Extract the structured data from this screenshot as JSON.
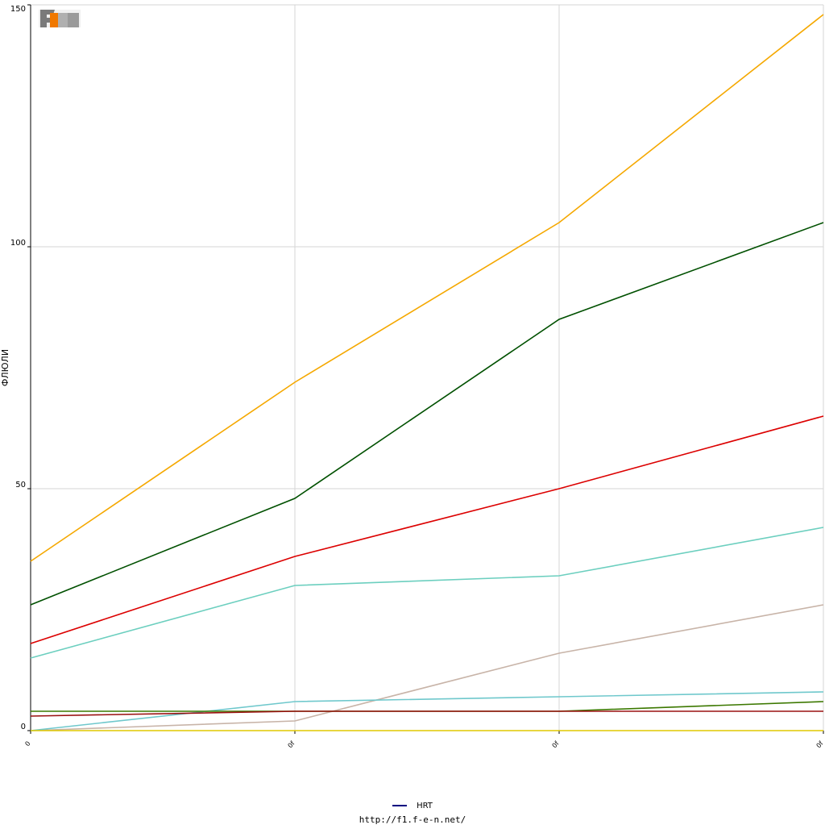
{
  "chart_data": {
    "type": "line",
    "title": "",
    "xlabel": "",
    "ylabel": "ФЛЮЛИ",
    "ylim": [
      0,
      150
    ],
    "y_ticks": [
      "0",
      "50",
      "100",
      "150"
    ],
    "categories": [
      "0",
      "0f",
      "0f",
      "0f"
    ],
    "grid": true,
    "legend_position": "bottom-center",
    "legend": [
      {
        "name": "HRT",
        "color": "#000080"
      }
    ],
    "series": [
      {
        "color": "#f5a800",
        "values": [
          35,
          72,
          105,
          148
        ]
      },
      {
        "color": "#005000",
        "values": [
          26,
          48,
          85,
          105
        ]
      },
      {
        "color": "#dc0000",
        "values": [
          18,
          36,
          50,
          65
        ]
      },
      {
        "color": "#6ccfbf",
        "values": [
          15,
          30,
          32,
          42
        ]
      },
      {
        "color": "#c8b4a8",
        "values": [
          0,
          2,
          16,
          26
        ]
      },
      {
        "color": "#6fc8cc",
        "values": [
          0,
          6,
          7,
          8
        ]
      },
      {
        "color": "#3c7800",
        "values": [
          4,
          4,
          4,
          6
        ]
      },
      {
        "color": "#9a1010",
        "values": [
          3,
          4,
          4,
          4
        ]
      },
      {
        "color": "#e0c800",
        "values": [
          0,
          0,
          0,
          0
        ]
      }
    ]
  },
  "footer": {
    "url": "http://f1.f-e-n.net/"
  },
  "logo": {
    "text": "F1EN"
  }
}
